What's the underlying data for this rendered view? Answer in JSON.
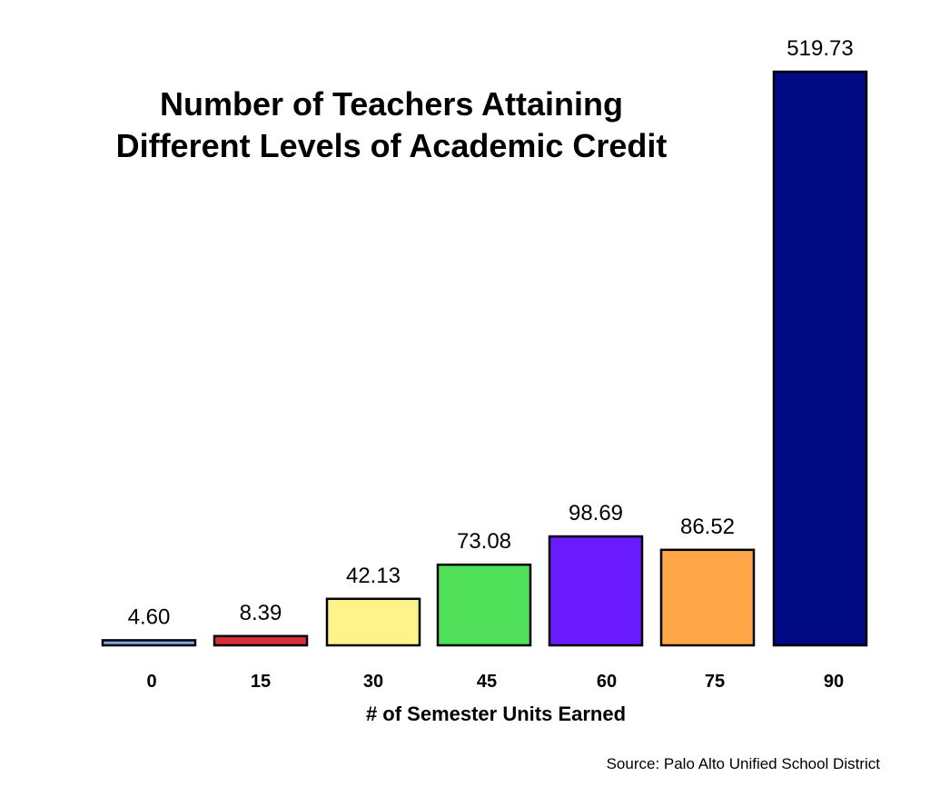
{
  "chart_data": {
    "type": "bar",
    "title": "Number of Teachers Attaining Different Levels of Academic Credit",
    "title_lines": [
      "Number of Teachers Attaining",
      "Different Levels of Academic Credit"
    ],
    "xlabel": "# of Semester Units Earned",
    "ylabel": "",
    "categories": [
      "0",
      "15",
      "30",
      "45",
      "60",
      "75",
      "90"
    ],
    "values": [
      4.6,
      8.39,
      42.13,
      73.08,
      98.69,
      86.52,
      519.73
    ],
    "value_labels": [
      "4.60",
      "8.39",
      "42.13",
      "73.08",
      "98.69",
      "86.52",
      "519.73"
    ],
    "colors": [
      "#7fa6e6",
      "#d8303a",
      "#fdf38a",
      "#50e05a",
      "#6a1bff",
      "#ffa748",
      "#000a82"
    ],
    "ylim": [
      0,
      519.73
    ],
    "grid": false,
    "legend": "none"
  },
  "source": "Source:  Palo Alto Unified School District"
}
